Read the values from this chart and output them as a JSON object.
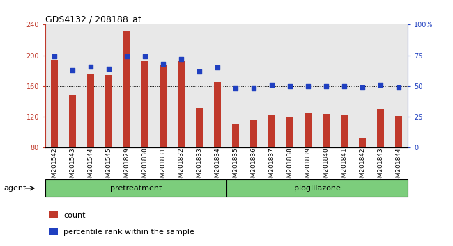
{
  "title": "GDS4132 / 208188_at",
  "categories": [
    "GSM201542",
    "GSM201543",
    "GSM201544",
    "GSM201545",
    "GSM201829",
    "GSM201830",
    "GSM201831",
    "GSM201832",
    "GSM201833",
    "GSM201834",
    "GSM201835",
    "GSM201836",
    "GSM201837",
    "GSM201838",
    "GSM201839",
    "GSM201840",
    "GSM201841",
    "GSM201842",
    "GSM201843",
    "GSM201844"
  ],
  "bar_values": [
    193,
    148,
    176,
    174,
    232,
    192,
    188,
    192,
    132,
    165,
    110,
    116,
    122,
    120,
    126,
    124,
    122,
    93,
    130,
    121
  ],
  "percentile_values": [
    74,
    63,
    66,
    64,
    74,
    74,
    68,
    72,
    62,
    65,
    48,
    48,
    51,
    50,
    50,
    50,
    50,
    49,
    51,
    49
  ],
  "bar_color": "#C0392B",
  "percentile_color": "#2040C0",
  "ylim_left": [
    80,
    240
  ],
  "ylim_right": [
    0,
    100
  ],
  "yticks_left": [
    80,
    120,
    160,
    200,
    240
  ],
  "yticks_right": [
    0,
    25,
    50,
    75,
    100
  ],
  "ytick_labels_right": [
    "0",
    "25",
    "50",
    "75",
    "100%"
  ],
  "group1_label": "pretreatment",
  "group2_label": "pioglilazone",
  "agent_label": "agent",
  "legend_count": "count",
  "legend_percentile": "percentile rank within the sample",
  "group1_count": 10,
  "group2_count": 10,
  "plot_bg": "#E8E8E8",
  "group_bg": "#7CCD7C",
  "fig_bg": "#FFFFFF"
}
